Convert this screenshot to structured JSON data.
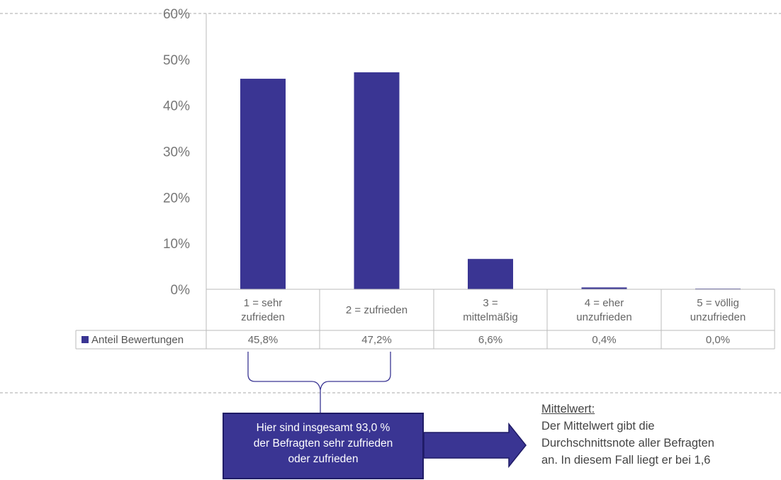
{
  "chart_data": {
    "type": "bar",
    "categories": [
      [
        "1 = sehr",
        "zufrieden"
      ],
      [
        "2 = zufrieden"
      ],
      [
        "3 =",
        "mittelmäßig"
      ],
      [
        "4 = eher",
        "unzufrieden"
      ],
      [
        "5 = völlig",
        "unzufrieden"
      ]
    ],
    "series": [
      {
        "name": "Anteil Bewertungen",
        "values": [
          45.8,
          47.2,
          6.6,
          0.4,
          0.0
        ],
        "color": "#3a3593"
      }
    ],
    "value_labels": [
      "45,8%",
      "47,2%",
      "6,6%",
      "0,4%",
      "0,0%"
    ],
    "ylim": [
      0,
      60
    ],
    "yticks": [
      0,
      10,
      20,
      30,
      40,
      50,
      60
    ],
    "ytick_labels": [
      "0%",
      "10%",
      "20%",
      "30%",
      "40%",
      "50%",
      "60%"
    ],
    "legend_placement": "data-table-left"
  },
  "callout": {
    "lines": [
      "Hier sind insgesamt 93,0 %",
      "der Befragten sehr zufrieden",
      "oder zufrieden"
    ]
  },
  "note": {
    "title": "Mittelwert:",
    "lines": [
      "Der Mittelwert gibt die",
      "Durchschnittsnote aller Befragten",
      "an. In diesem Fall liegt er bei 1,6"
    ]
  },
  "colors": {
    "bar": "#3a3593",
    "callout_fill": "#3a3593",
    "grid": "#bbbbbb",
    "dashed": "#aaaaaa"
  }
}
